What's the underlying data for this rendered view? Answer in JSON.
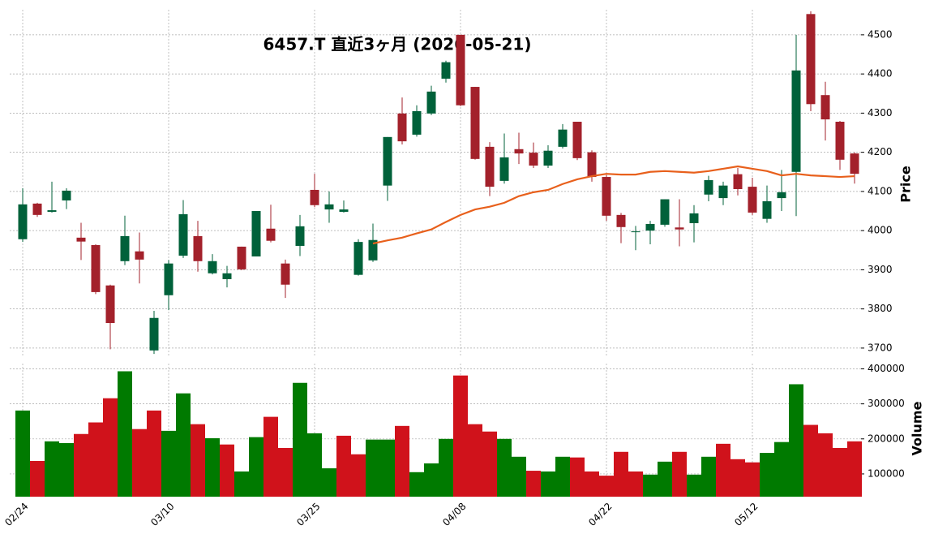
{
  "chart_data": {
    "type": "candlestick",
    "title": "6457.T 直近3ヶ月 (2026-05-21)",
    "y_label": "Price",
    "y2_label": "Volume",
    "categories": [
      "02/24",
      null,
      null,
      null,
      null,
      null,
      null,
      null,
      null,
      null,
      "03/10",
      null,
      null,
      null,
      null,
      null,
      null,
      null,
      null,
      null,
      "03/25",
      null,
      null,
      null,
      null,
      null,
      null,
      null,
      null,
      null,
      "04/08",
      null,
      null,
      null,
      null,
      null,
      null,
      null,
      null,
      null,
      "04/22",
      null,
      null,
      null,
      null,
      null,
      null,
      null,
      null,
      null,
      "05/12",
      null,
      null,
      null,
      null,
      null,
      null,
      null
    ],
    "open": [
      3978,
      4069,
      4048,
      4077,
      3982,
      3963,
      3860,
      3922,
      3947,
      3694,
      3835,
      3936,
      3986,
      3891,
      3876,
      3959,
      3934,
      4005,
      3916,
      3961,
      4104,
      4054,
      4048,
      3887,
      3924,
      4115,
      4299,
      4245,
      4299,
      4388,
      4500,
      4367,
      4214,
      4127,
      4208,
      4199,
      4166,
      4214,
      4278,
      4200,
      4137,
      4040,
      3998,
      4000,
      4015,
      4008,
      4019,
      4092,
      4083,
      4144,
      4112,
      4030,
      4083,
      4150,
      4553,
      4346,
      4278,
      4197
    ],
    "high": [
      4108,
      4071,
      4125,
      4108,
      4020,
      3965,
      3862,
      4038,
      3995,
      3795,
      3925,
      4078,
      4025,
      3940,
      3910,
      3959,
      4050,
      4066,
      3926,
      4040,
      4145,
      4100,
      4077,
      3978,
      4018,
      4239,
      4340,
      4320,
      4370,
      4434,
      4500,
      4367,
      4226,
      4248,
      4250,
      4225,
      4218,
      4272,
      4278,
      4205,
      4142,
      4045,
      4012,
      4025,
      4080,
      4080,
      4065,
      4140,
      4125,
      4160,
      4135,
      4115,
      4155,
      4500,
      4560,
      4380,
      4280,
      4200
    ],
    "low": [
      3971,
      4035,
      4046,
      4055,
      3925,
      3838,
      3697,
      3912,
      3865,
      3685,
      3797,
      3930,
      3895,
      3888,
      3855,
      3899,
      3934,
      3970,
      3828,
      3935,
      4060,
      4020,
      4046,
      3885,
      3920,
      4076,
      4220,
      4240,
      4295,
      4378,
      4318,
      4181,
      4088,
      4120,
      4170,
      4160,
      4160,
      4210,
      4180,
      4125,
      4025,
      3968,
      3950,
      3965,
      4010,
      3960,
      3970,
      4075,
      4065,
      4090,
      4040,
      4020,
      4050,
      4037,
      4305,
      4230,
      4155,
      4120
    ],
    "close": [
      4067,
      4040,
      4052,
      4102,
      3972,
      3843,
      3764,
      3986,
      3926,
      3777,
      3916,
      4042,
      3922,
      3922,
      3891,
      3901,
      4050,
      3974,
      3862,
      4011,
      4065,
      4067,
      4054,
      3971,
      3976,
      4239,
      4228,
      4305,
      4355,
      4430,
      4320,
      4183,
      4112,
      4187,
      4197,
      4166,
      4204,
      4258,
      4185,
      4137,
      4038,
      4009,
      3998,
      4017,
      4080,
      4003,
      4044,
      4129,
      4115,
      4106,
      4046,
      4075,
      4098,
      4409,
      4323,
      4284,
      4181,
      4145
    ],
    "volume": [
      281000,
      137000,
      193000,
      188000,
      214000,
      247000,
      316000,
      393000,
      228000,
      281000,
      223000,
      330000,
      242000,
      202000,
      184000,
      107000,
      205000,
      263000,
      174000,
      360000,
      216000,
      116000,
      209000,
      156000,
      198000,
      198000,
      237000,
      105000,
      130000,
      200000,
      381000,
      242000,
      221000,
      200000,
      149000,
      109000,
      107000,
      149000,
      147000,
      107000,
      95000,
      163000,
      107000,
      98000,
      135000,
      163000,
      98000,
      149000,
      186000,
      142000,
      133000,
      160000,
      191000,
      356000,
      240000,
      216000,
      174000,
      193000
    ],
    "ma": [
      null,
      null,
      null,
      null,
      null,
      null,
      null,
      null,
      null,
      null,
      null,
      null,
      null,
      null,
      null,
      null,
      null,
      null,
      null,
      null,
      null,
      null,
      null,
      null,
      3967,
      3975,
      3982,
      3993,
      4003,
      4022,
      4040,
      4054,
      4061,
      4071,
      4088,
      4098,
      4104,
      4119,
      4131,
      4139,
      4145,
      4143,
      4143,
      4150,
      4152,
      4150,
      4148,
      4152,
      4158,
      4164,
      4158,
      4152,
      4141,
      4145,
      4141,
      4139,
      4137,
      4139
    ],
    "up_color": "#00613a",
    "down_color": "#a3212b",
    "volume_up_color": "#007a00",
    "volume_down_color": "#d0121b",
    "ma_color": "#e8601c",
    "ylim": [
      3677,
      4564
    ],
    "yticks": [
      3700,
      3800,
      3900,
      4000,
      4100,
      4200,
      4300,
      4400,
      4500
    ],
    "y2lim": [
      35000,
      415000
    ],
    "y2ticks": [
      100000,
      200000,
      300000,
      400000
    ],
    "grid": true
  }
}
